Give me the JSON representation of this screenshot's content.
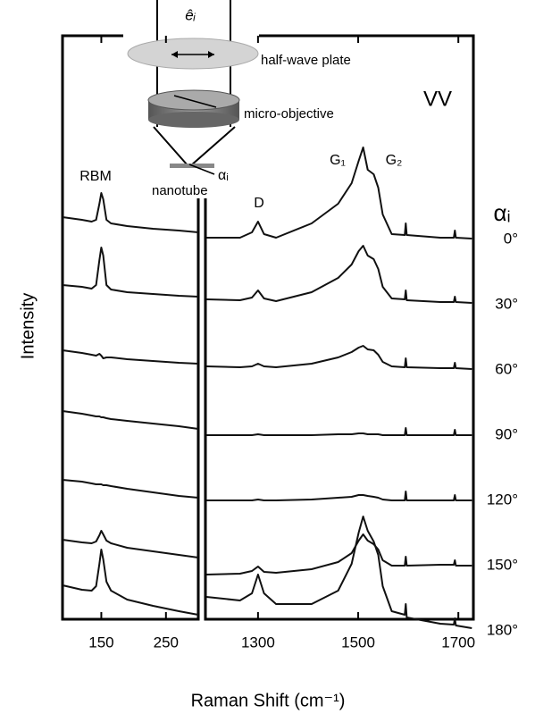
{
  "figure": {
    "x_label": "Raman Shift (cm⁻¹)",
    "y_label": "Intensity",
    "annotations": {
      "polarization": "VV",
      "angle_header": "αᵢ",
      "rbm": "RBM",
      "d": "D",
      "g1": "G₁",
      "g2": "G₂"
    },
    "diagram": {
      "polarization_vector": "êᵢ",
      "plate": "half-wave plate",
      "objective": "micro-objective",
      "angle": "αᵢ",
      "sample": "nanotube"
    }
  },
  "chart_data": [
    {
      "type": "line",
      "color": "#111111",
      "xlim": [
        90,
        300
      ],
      "xticks": [
        150,
        250
      ],
      "x": [
        90,
        120,
        135,
        142,
        147,
        150,
        153,
        158,
        165,
        190,
        230,
        270,
        300
      ],
      "series": [
        {
          "values": [
            25,
            22,
            20,
            22,
            40,
            52,
            45,
            22,
            18,
            15,
            12,
            10,
            8
          ]
        },
        {
          "values": [
            22,
            20,
            18,
            22,
            50,
            64,
            55,
            22,
            17,
            14,
            12,
            10,
            9
          ]
        },
        {
          "values": [
            22,
            19,
            17,
            16,
            18,
            16,
            13,
            14,
            14,
            12,
            10,
            8,
            7
          ]
        },
        {
          "values": [
            27,
            24,
            22,
            21,
            21,
            20,
            20,
            19,
            18,
            16,
            13,
            10,
            7
          ]
        },
        {
          "values": [
            23,
            21,
            19,
            18,
            18,
            18,
            17,
            17,
            16,
            13,
            9,
            5,
            3
          ]
        },
        {
          "values": [
            29,
            26,
            25,
            27,
            34,
            39,
            35,
            28,
            25,
            20,
            16,
            12,
            9
          ]
        },
        {
          "values": [
            51,
            46,
            45,
            50,
            75,
            91,
            80,
            55,
            45,
            35,
            28,
            22,
            18
          ]
        }
      ]
    },
    {
      "type": "line",
      "color": "#111111",
      "xlim": [
        1195,
        1730
      ],
      "xticks": [
        1300,
        1500,
        1700
      ],
      "x": [
        1197,
        1264,
        1288,
        1300,
        1312,
        1336,
        1407,
        1460,
        1487,
        1501,
        1510,
        1519,
        1531,
        1540,
        1549,
        1567,
        1593,
        1595,
        1597,
        1664,
        1691,
        1693,
        1695,
        1727
      ],
      "series": [
        {
          "name": "0°",
          "values": [
            2,
            2,
            8,
            20,
            6,
            2,
            18,
            40,
            63,
            88,
            103,
            78,
            73,
            58,
            28,
            6,
            5,
            18,
            5,
            2,
            2,
            10,
            2,
            1
          ]
        },
        {
          "name": "30°",
          "values": [
            6,
            5,
            8,
            16,
            7,
            4,
            14,
            30,
            45,
            60,
            66,
            55,
            51,
            40,
            20,
            7,
            6,
            16,
            5,
            3,
            3,
            9,
            3,
            2
          ]
        },
        {
          "name": "60°",
          "values": [
            4,
            3,
            4,
            7,
            4,
            3,
            7,
            14,
            20,
            25,
            27,
            23,
            22,
            17,
            9,
            4,
            3,
            13,
            3,
            2,
            2,
            8,
            2,
            1
          ]
        },
        {
          "name": "90°",
          "values": [
            0,
            0,
            0,
            1,
            0,
            0,
            0,
            1,
            1,
            2,
            2,
            1,
            1,
            1,
            0,
            0,
            0,
            8,
            0,
            0,
            0,
            6,
            0,
            0
          ]
        },
        {
          "name": "120°",
          "values": [
            0,
            0,
            0,
            1,
            0,
            0,
            1,
            3,
            4,
            6,
            6,
            5,
            4,
            3,
            1,
            0,
            0,
            10,
            0,
            0,
            0,
            6,
            0,
            0
          ]
        },
        {
          "name": "150°",
          "values": [
            -10,
            -9,
            -6,
            -1,
            -7,
            -8,
            -4,
            4,
            14,
            28,
            35,
            28,
            24,
            18,
            6,
            0,
            0,
            10,
            0,
            1,
            1,
            6,
            0,
            0
          ]
        },
        {
          "name": "180°",
          "values": [
            38,
            34,
            42,
            63,
            42,
            30,
            30,
            45,
            75,
            110,
            128,
            112,
            100,
            85,
            50,
            22,
            18,
            30,
            15,
            8,
            7,
            14,
            6,
            3
          ]
        }
      ]
    }
  ]
}
